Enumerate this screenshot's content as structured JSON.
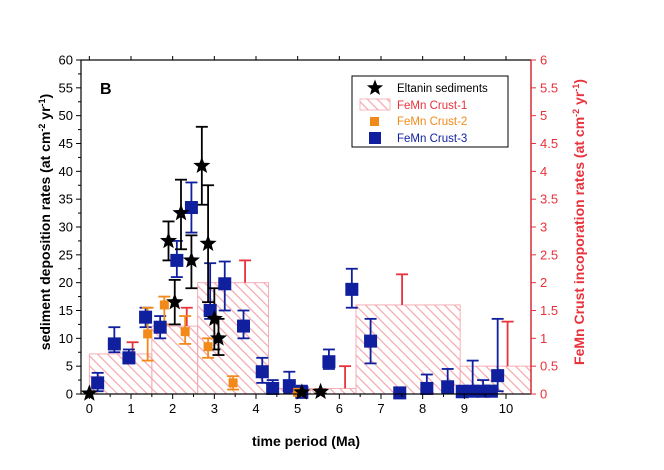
{
  "chart_data": {
    "type": "scatter",
    "panel_label": "B",
    "xlabel": "time period (Ma)",
    "ylabel_left": {
      "main": "sediment deposition rates (at cm",
      "sup1": "-2",
      "mid": " yr",
      "sup2": "-1",
      "end": ")"
    },
    "ylabel_right": {
      "main": "FeMn Crust incoporation rates (at cm",
      "sup1": "-2",
      "mid": " yr",
      "sup2": "-1",
      "end": ")"
    },
    "xlim": [
      -0.2,
      10.6
    ],
    "ylim_left": [
      0,
      60
    ],
    "ylim_right": [
      0,
      6
    ],
    "x_ticks": [
      "0",
      "1",
      "2",
      "3",
      "4",
      "5",
      "6",
      "7",
      "8",
      "9",
      "10"
    ],
    "y_ticks_left": [
      "0",
      "5",
      "10",
      "15",
      "20",
      "25",
      "30",
      "35",
      "40",
      "45",
      "50",
      "55",
      "60"
    ],
    "y_ticks_right": [
      "0",
      "0.5",
      "1",
      "1.5",
      "2",
      "2.5",
      "3",
      "3.5",
      "4",
      "4.5",
      "5",
      "5.5",
      "6"
    ],
    "legend": {
      "position": "top-right",
      "entries": [
        "Eltanin sediments",
        "FeMn Crust-1",
        "FeMn Crust-2",
        "FeMn Crust-3"
      ]
    },
    "colors": {
      "eltanin": "#000000",
      "crust1": "#e8323c",
      "crust1_hatch": "#f4a6ae",
      "crust2": "#f28a1a",
      "crust3": "#0f1f9e",
      "right_axis": "#e8323c"
    },
    "series": [
      {
        "name": "Eltanin sediments",
        "axis": "left",
        "marker": "star",
        "points": [
          {
            "x": 0.0,
            "y": 0.1,
            "lo": 0.1,
            "hi": 0.1
          },
          {
            "x": 1.9,
            "y": 27.5,
            "lo": 24,
            "hi": 31
          },
          {
            "x": 2.05,
            "y": 16.5,
            "lo": 12.5,
            "hi": 20.5
          },
          {
            "x": 2.2,
            "y": 32.5,
            "lo": 26,
            "hi": 38.5
          },
          {
            "x": 2.45,
            "y": 24.0,
            "lo": 19,
            "hi": 28.5
          },
          {
            "x": 2.7,
            "y": 41.0,
            "lo": 34,
            "hi": 48
          },
          {
            "x": 2.85,
            "y": 27.0,
            "lo": 16.5,
            "hi": 37.5
          },
          {
            "x": 3.0,
            "y": 13.5,
            "lo": 8,
            "hi": 19
          },
          {
            "x": 3.1,
            "y": 10.0,
            "lo": 7,
            "hi": 13.5
          },
          {
            "x": 5.1,
            "y": 0.3,
            "lo": 0.1,
            "hi": 0.6
          },
          {
            "x": 5.55,
            "y": 0.4,
            "lo": 0.1,
            "hi": 0.8
          }
        ]
      },
      {
        "name": "FeMn Crust-1",
        "axis": "right",
        "marker": "hatched-bar",
        "bars": [
          {
            "x0": 0.0,
            "x1": 1.5,
            "y": 0.72,
            "err_hi": 0.93
          },
          {
            "x0": 1.5,
            "x1": 2.6,
            "y": 1.22,
            "err_hi": 1.55
          },
          {
            "x0": 2.6,
            "x1": 4.3,
            "y": 2.0,
            "err_hi": 2.4
          },
          {
            "x0": 4.3,
            "x1": 5.3,
            "y": 0.1,
            "err_hi": 0.1
          },
          {
            "x0": 5.3,
            "x1": 6.4,
            "y": 0.1,
            "err_hi": 0.5
          },
          {
            "x0": 6.4,
            "x1": 8.9,
            "y": 1.6,
            "err_hi": 2.15
          },
          {
            "x0": 8.9,
            "x1": 10.6,
            "y": 0.5,
            "err_hi": 1.3
          }
        ]
      },
      {
        "name": "FeMn Crust-2",
        "axis": "left",
        "marker": "square-small",
        "points": [
          {
            "x": 1.4,
            "y": 10.8,
            "lo": 6,
            "hi": 15.5
          },
          {
            "x": 1.8,
            "y": 16.0,
            "lo": 12.5,
            "hi": 17.5
          },
          {
            "x": 2.3,
            "y": 11.2,
            "lo": 9,
            "hi": 14
          },
          {
            "x": 2.85,
            "y": 8.5,
            "lo": 6.5,
            "hi": 10
          },
          {
            "x": 3.45,
            "y": 2.0,
            "lo": 0.8,
            "hi": 3.2
          },
          {
            "x": 5.0,
            "y": 0.3,
            "lo": 0.1,
            "hi": 0.8
          }
        ]
      },
      {
        "name": "FeMn Crust-3",
        "axis": "left",
        "marker": "square",
        "points": [
          {
            "x": 0.2,
            "y": 2.0,
            "lo": 0.5,
            "hi": 3.8
          },
          {
            "x": 0.6,
            "y": 9.0,
            "lo": 7.5,
            "hi": 12
          },
          {
            "x": 0.95,
            "y": 6.5,
            "lo": 5.5,
            "hi": 8
          },
          {
            "x": 1.35,
            "y": 13.8,
            "lo": 12,
            "hi": 15.5
          },
          {
            "x": 1.7,
            "y": 12.0,
            "lo": 10,
            "hi": 14
          },
          {
            "x": 2.1,
            "y": 24.0,
            "lo": 21,
            "hi": 27.5
          },
          {
            "x": 2.45,
            "y": 33.5,
            "lo": 29,
            "hi": 38
          },
          {
            "x": 2.9,
            "y": 15.0,
            "lo": 13.5,
            "hi": 23.5
          },
          {
            "x": 3.25,
            "y": 19.8,
            "lo": 15,
            "hi": 23.8
          },
          {
            "x": 3.7,
            "y": 12.2,
            "lo": 10,
            "hi": 15
          },
          {
            "x": 4.15,
            "y": 4.0,
            "lo": 2,
            "hi": 6.5
          },
          {
            "x": 4.4,
            "y": 1.0,
            "lo": 0.1,
            "hi": 2.5
          },
          {
            "x": 4.8,
            "y": 1.5,
            "lo": 0.2,
            "hi": 4
          },
          {
            "x": 5.1,
            "y": 0.3,
            "lo": 0.1,
            "hi": 1.5
          },
          {
            "x": 5.75,
            "y": 5.8,
            "lo": 4.5,
            "hi": 8
          },
          {
            "x": 6.3,
            "y": 18.8,
            "lo": 15.5,
            "hi": 22.5
          },
          {
            "x": 6.75,
            "y": 9.5,
            "lo": 5.5,
            "hi": 13.5
          },
          {
            "x": 7.45,
            "y": 0.2,
            "lo": 0.1,
            "hi": 0.5
          },
          {
            "x": 8.1,
            "y": 1.0,
            "lo": 0.1,
            "hi": 3.5
          },
          {
            "x": 8.6,
            "y": 1.3,
            "lo": 0.1,
            "hi": 4.5
          },
          {
            "x": 8.95,
            "y": 0.4,
            "lo": 0.1,
            "hi": 1.5
          },
          {
            "x": 9.2,
            "y": 0.5,
            "lo": 0.1,
            "hi": 6.0
          },
          {
            "x": 9.45,
            "y": 0.5,
            "lo": 0.1,
            "hi": 2.5
          },
          {
            "x": 9.65,
            "y": 0.5,
            "lo": 0.1,
            "hi": 1.5
          },
          {
            "x": 9.8,
            "y": 3.3,
            "lo": 0.5,
            "hi": 13.5
          }
        ]
      }
    ]
  }
}
